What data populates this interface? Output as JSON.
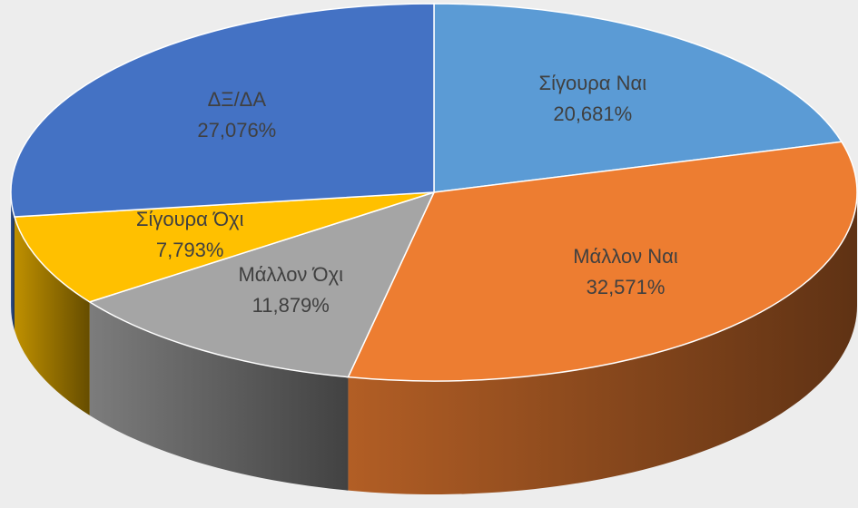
{
  "chart_data": {
    "type": "pie3d",
    "categories": [
      "Σίγουρα Ναι",
      "Μάλλον Ναι",
      "Μάλλον Όχι",
      "Σίγουρα Όχι",
      "ΔΞ/ΔΑ"
    ],
    "values": [
      20.681,
      32.571,
      11.879,
      7.793,
      27.076
    ],
    "value_labels": [
      "20,681%",
      "32,571%",
      "11,879%",
      "7,793%",
      "27,076%"
    ],
    "colors": [
      "#5b9bd5",
      "#ed7d31",
      "#a5a5a5",
      "#ffc000",
      "#4472c4"
    ]
  }
}
